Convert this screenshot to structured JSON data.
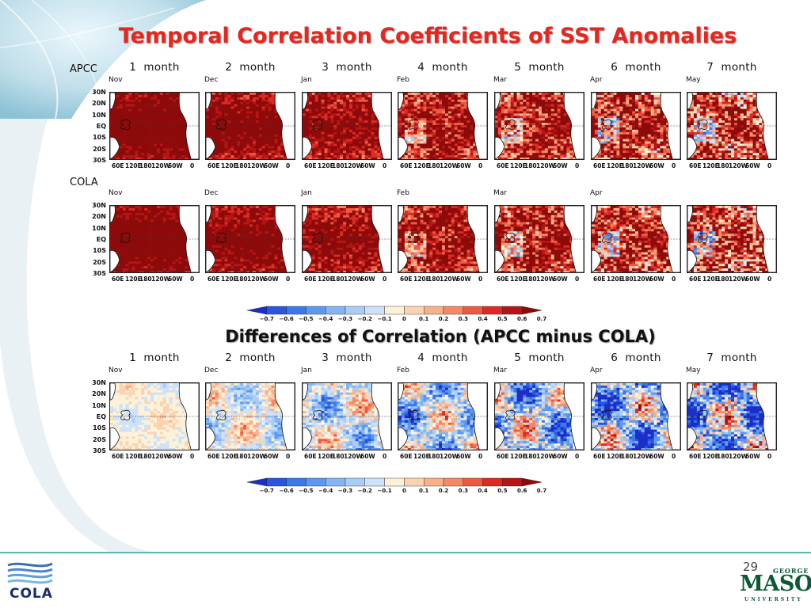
{
  "slide": {
    "title": "Temporal Correlation Coefficients of SST Anomalies",
    "diff_title": "Differences of Correlation (APCC minus COLA)",
    "page_number": "29"
  },
  "rows": [
    {
      "key": "apcc",
      "label": "APCC",
      "show_heads": true,
      "heads": [
        "1  month",
        "2  month",
        "3  month",
        "4  month",
        "5  month",
        "6  month",
        "7  month"
      ],
      "months": [
        "Nov",
        "Dec",
        "Jan",
        "Feb",
        "Mar",
        "Apr",
        "May"
      ],
      "kind": "correlation"
    },
    {
      "key": "cola",
      "label": "COLA",
      "show_heads": false,
      "heads": [],
      "months": [
        "Nov",
        "Dec",
        "Jan",
        "Feb",
        "Mar",
        "Apr",
        ""
      ],
      "kind": "correlation"
    },
    {
      "key": "diff",
      "label": "",
      "show_heads": true,
      "heads": [
        "1  month",
        "2  month",
        "3  month",
        "4  month",
        "5  month",
        "6  month",
        "7  month"
      ],
      "months": [
        "Nov",
        "Dec",
        "Jan",
        "Feb",
        "Mar",
        "Apr",
        "May"
      ],
      "kind": "difference"
    }
  ],
  "axes": {
    "y_ticks": [
      "30N",
      "20N",
      "10N",
      "EQ",
      "10S",
      "20S",
      "30S"
    ],
    "x_ticks": [
      "60E",
      "120E",
      "180",
      "120W",
      "60W",
      "0"
    ]
  },
  "colorbar": {
    "labels": [
      "−0.7",
      "−0.6",
      "−0.5",
      "−0.4",
      "−0.3",
      "−0.2",
      "−0.1",
      "0",
      "0.1",
      "0.2",
      "0.3",
      "0.4",
      "0.5",
      "0.6",
      "0.7"
    ],
    "colors": [
      "#1a2ec8",
      "#2a55e0",
      "#3b78ea",
      "#5c98f0",
      "#84b6f5",
      "#aacdf7",
      "#cde2fa",
      "#fdf1d8",
      "#fcd3b0",
      "#f9b08a",
      "#f58964",
      "#ee5a3f",
      "#dd2a22",
      "#b51515",
      "#8c0a0a"
    ]
  },
  "chart_data": [
    {
      "type": "heatmap",
      "title": "Temporal Correlation Coefficients of SST Anomalies",
      "row_label": "APCC",
      "panels": [
        "1  month",
        "2  month",
        "3  month",
        "4  month",
        "5  month",
        "6  month",
        "7  month"
      ],
      "panel_months": [
        "Nov",
        "Dec",
        "Jan",
        "Feb",
        "Mar",
        "Apr",
        "May"
      ],
      "lat_ticks": [
        "30N",
        "20N",
        "10N",
        "EQ",
        "10S",
        "20S",
        "30S"
      ],
      "lon_ticks": [
        "60E",
        "120E",
        "180",
        "120W",
        "60W",
        "0"
      ],
      "color_range": [
        -0.7,
        0.7
      ]
    },
    {
      "type": "heatmap",
      "row_label": "COLA",
      "panel_months": [
        "Nov",
        "Dec",
        "Jan",
        "Feb",
        "Mar",
        "Apr"
      ],
      "lat_ticks": [
        "30N",
        "20N",
        "10N",
        "EQ",
        "10S",
        "20S",
        "30S"
      ],
      "lon_ticks": [
        "60E",
        "120E",
        "180",
        "120W",
        "60W",
        "0"
      ],
      "color_range": [
        -0.7,
        0.7
      ]
    },
    {
      "type": "heatmap",
      "title": "Differences of Correlation (APCC minus COLA)",
      "panels": [
        "1  month",
        "2  month",
        "3  month",
        "4  month",
        "5  month",
        "6  month",
        "7  month"
      ],
      "panel_months": [
        "Nov",
        "Dec",
        "Jan",
        "Feb",
        "Mar",
        "Apr",
        "May"
      ],
      "lat_ticks": [
        "30N",
        "20N",
        "10N",
        "EQ",
        "10S",
        "20S",
        "30S"
      ],
      "lon_ticks": [
        "60E",
        "120E",
        "180",
        "120W",
        "60W",
        "0"
      ],
      "color_range": [
        -0.7,
        0.7
      ]
    }
  ],
  "logos": {
    "left": "COLA",
    "right": [
      "GEORGE",
      "MASON",
      "UNIVERSITY"
    ]
  }
}
